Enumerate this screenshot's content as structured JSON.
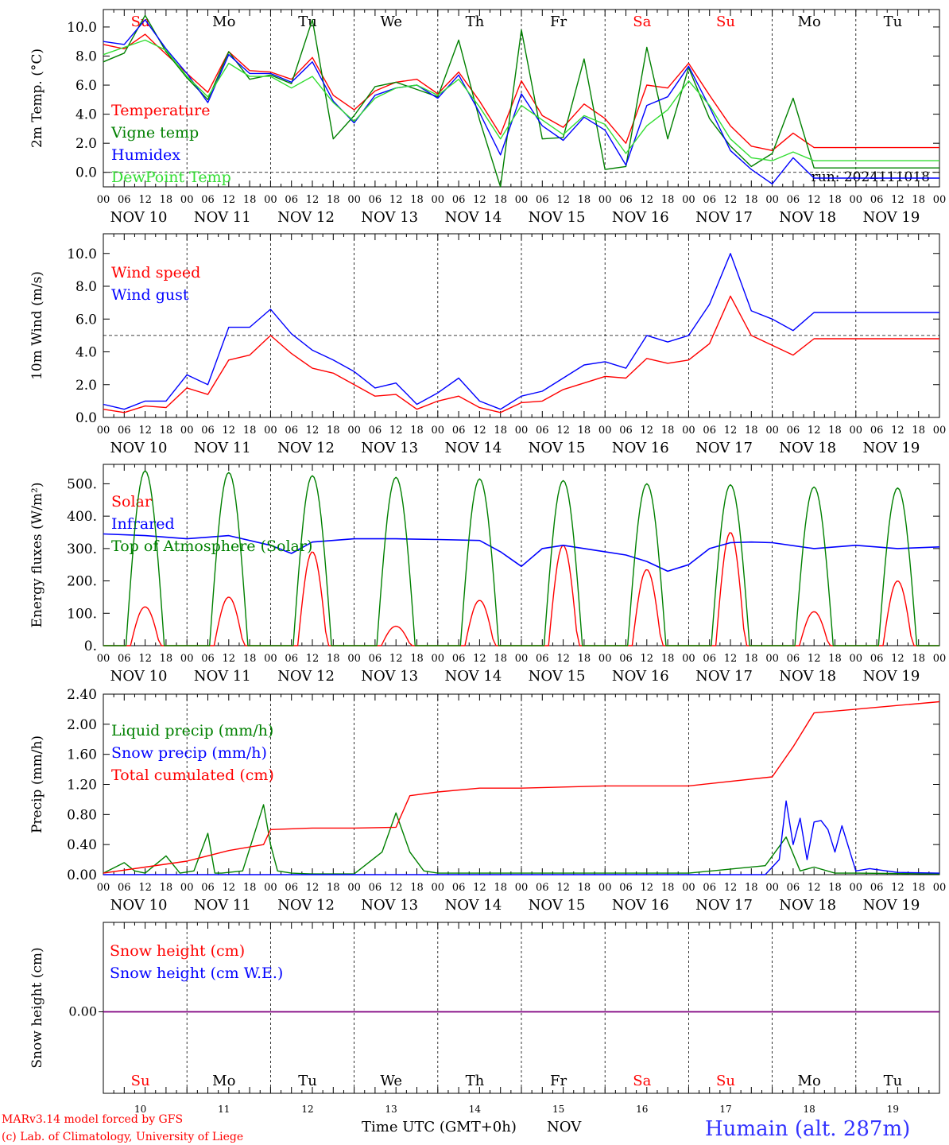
{
  "colors": {
    "red": "#ff0000",
    "green": "#008000",
    "blue": "#0000ff",
    "lightgreen": "#33dd33",
    "purple": "#800080",
    "footer_blue": "#3333ff"
  },
  "day_names": [
    "Su",
    "Mo",
    "Tu",
    "We",
    "Th",
    "Fr",
    "Sa",
    "Su",
    "Mo",
    "Tu"
  ],
  "weekend_days": [
    0,
    6,
    7
  ],
  "hour_ticks": [
    "00",
    "06",
    "12",
    "18"
  ],
  "last_hour_tick": "00",
  "date_labels": [
    "NOV 10",
    "NOV 11",
    "NOV 12",
    "NOV 13",
    "NOV 14",
    "NOV 15",
    "NOV 16",
    "NOV 17",
    "NOV 18",
    "NOV 19"
  ],
  "bottom_days": [
    "10",
    "11",
    "12",
    "13",
    "14",
    "15",
    "16",
    "17",
    "18",
    "19"
  ],
  "footer": {
    "credit1": "MARv3.14 model forced by GFS",
    "credit2": "(c) Lab. of Climatology, University of Liege",
    "xlabel": "Time UTC (GMT+0h)",
    "month": "NOV",
    "station": "Humain (alt. 287m)"
  },
  "chart_data": [
    {
      "type": "line",
      "ylabel": "2m Temp. (°C)",
      "ylim": [
        -1.0,
        11.2
      ],
      "yticks": [
        "0.0",
        "2.0",
        "4.0",
        "6.0",
        "8.0",
        "10.0"
      ],
      "ytick_values": [
        0,
        2,
        4,
        6,
        8,
        10
      ],
      "reference_line": 0,
      "annotation": "run: 2024111018",
      "x_unit": "hours since NOV 10 00 UTC",
      "series": [
        {
          "name": "Temperature",
          "color": "red",
          "x": [
            0,
            6,
            12,
            15,
            24,
            30,
            36,
            42,
            48,
            54,
            60,
            66,
            72,
            78,
            84,
            90,
            96,
            102,
            108,
            114,
            120,
            126,
            132,
            138,
            144,
            150,
            156,
            162,
            168,
            174,
            180,
            186,
            192,
            198,
            204,
            210,
            216,
            222,
            228,
            234,
            240
          ],
          "y": [
            8.8,
            8.5,
            9.5,
            8.8,
            6.8,
            5.5,
            8.3,
            7.0,
            6.9,
            6.4,
            7.9,
            5.3,
            4.3,
            5.6,
            6.2,
            6.4,
            5.4,
            6.9,
            4.9,
            2.6,
            6.3,
            3.9,
            3.1,
            4.7,
            3.7,
            2.0,
            6.0,
            5.8,
            7.5,
            5.3,
            3.2,
            1.8,
            1.5,
            2.7,
            1.7,
            1.7,
            1.7,
            1.7,
            1.7,
            1.7,
            1.7
          ]
        },
        {
          "name": "Vigne temp",
          "color": "green",
          "x": [
            0,
            6,
            12,
            18,
            24,
            30,
            36,
            42,
            48,
            54,
            60,
            66,
            72,
            78,
            84,
            90,
            96,
            102,
            108,
            114,
            120,
            126,
            132,
            138,
            144,
            150,
            156,
            162,
            168,
            174,
            180,
            186,
            192,
            198,
            204,
            210,
            216,
            222,
            228,
            234,
            240
          ],
          "y": [
            7.6,
            8.2,
            10.8,
            8.3,
            6.5,
            5.0,
            8.3,
            6.4,
            6.7,
            6.1,
            10.5,
            2.3,
            3.9,
            5.9,
            6.2,
            5.7,
            5.2,
            9.1,
            3.6,
            -1.0,
            9.8,
            2.3,
            2.4,
            7.8,
            0.2,
            0.4,
            8.6,
            2.3,
            7.2,
            3.7,
            1.8,
            0.4,
            1.3,
            5.1,
            0.3,
            0.3,
            0.3,
            0.3,
            0.3,
            0.3,
            0.3
          ]
        },
        {
          "name": "Humidex",
          "color": "blue",
          "x": [
            0,
            6,
            12,
            18,
            24,
            30,
            36,
            42,
            48,
            54,
            60,
            66,
            72,
            78,
            84,
            90,
            96,
            102,
            108,
            114,
            120,
            126,
            132,
            138,
            144,
            150,
            156,
            162,
            168,
            174,
            180,
            186,
            192,
            198,
            204,
            210,
            216,
            222,
            228,
            234,
            240
          ],
          "y": [
            9.0,
            8.8,
            10.5,
            8.5,
            6.8,
            4.8,
            8.1,
            6.8,
            6.8,
            6.2,
            7.6,
            4.9,
            3.4,
            5.3,
            5.8,
            6.0,
            5.1,
            6.7,
            4.1,
            1.2,
            5.4,
            3.2,
            2.2,
            3.8,
            2.9,
            0.5,
            4.6,
            5.2,
            7.3,
            4.5,
            1.5,
            0.2,
            -0.8,
            1.0,
            -0.4,
            -0.4,
            -0.4,
            -0.4,
            -0.4,
            -0.4,
            -0.4
          ]
        },
        {
          "name": "DewPoint Temp",
          "color": "lightgreen",
          "x": [
            0,
            6,
            12,
            18,
            24,
            30,
            36,
            42,
            48,
            54,
            60,
            66,
            72,
            78,
            84,
            90,
            96,
            102,
            108,
            114,
            120,
            126,
            132,
            138,
            144,
            150,
            156,
            162,
            168,
            174,
            180,
            186,
            192,
            198,
            204,
            210,
            216,
            222,
            228,
            234,
            240
          ],
          "y": [
            8.1,
            8.6,
            9.1,
            8.4,
            6.6,
            5.2,
            7.5,
            6.6,
            6.6,
            5.8,
            6.6,
            4.8,
            3.5,
            5.1,
            5.8,
            6.0,
            5.3,
            6.4,
            4.5,
            2.3,
            4.6,
            3.6,
            2.6,
            3.9,
            3.3,
            1.3,
            3.2,
            4.3,
            6.3,
            4.6,
            2.3,
            1.0,
            0.8,
            1.4,
            0.8,
            0.8,
            0.8,
            0.8,
            0.8,
            0.8,
            0.8
          ]
        }
      ]
    },
    {
      "type": "line",
      "ylabel": "10m Wind (m/s)",
      "ylim": [
        0,
        11.2
      ],
      "yticks": [
        "0.0",
        "2.0",
        "4.0",
        "6.0",
        "8.0",
        "10.0"
      ],
      "ytick_values": [
        0,
        2,
        4,
        6,
        8,
        10
      ],
      "reference_line": 5,
      "x_unit": "hours since NOV 10 00 UTC",
      "series": [
        {
          "name": "Wind speed",
          "color": "red",
          "x": [
            0,
            6,
            12,
            18,
            24,
            30,
            36,
            42,
            48,
            54,
            60,
            66,
            72,
            78,
            84,
            90,
            96,
            102,
            108,
            114,
            120,
            126,
            132,
            138,
            144,
            150,
            156,
            162,
            168,
            174,
            180,
            186,
            192,
            198,
            204,
            210,
            216,
            222,
            228,
            234,
            240
          ],
          "y": [
            0.5,
            0.3,
            0.7,
            0.6,
            1.8,
            1.4,
            3.5,
            3.8,
            5.0,
            3.9,
            3.0,
            2.7,
            2.0,
            1.3,
            1.4,
            0.5,
            1.0,
            1.3,
            0.6,
            0.3,
            0.9,
            1.0,
            1.7,
            2.1,
            2.5,
            2.4,
            3.6,
            3.3,
            3.5,
            4.5,
            7.4,
            5.0,
            4.4,
            3.8,
            4.8,
            4.8,
            4.8,
            4.8,
            4.8,
            4.8,
            4.8
          ]
        },
        {
          "name": "Wind gust",
          "color": "blue",
          "x": [
            0,
            6,
            12,
            18,
            24,
            30,
            36,
            42,
            48,
            54,
            60,
            66,
            72,
            78,
            84,
            90,
            96,
            102,
            108,
            114,
            120,
            126,
            132,
            138,
            144,
            150,
            156,
            162,
            168,
            174,
            180,
            186,
            192,
            198,
            204,
            210,
            216,
            222,
            228,
            234,
            240
          ],
          "y": [
            0.8,
            0.5,
            1.0,
            1.0,
            2.6,
            2.0,
            5.5,
            5.5,
            6.6,
            5.1,
            4.1,
            3.5,
            2.8,
            1.8,
            2.1,
            0.8,
            1.5,
            2.4,
            1.0,
            0.5,
            1.3,
            1.6,
            2.4,
            3.2,
            3.4,
            3.0,
            5.0,
            4.6,
            5.0,
            6.9,
            10.0,
            6.5,
            6.0,
            5.3,
            6.4,
            6.4,
            6.4,
            6.4,
            6.4,
            6.4,
            6.4
          ]
        }
      ]
    },
    {
      "type": "line",
      "ylabel": "Energy fluxes (W/m²)",
      "ylim": [
        0,
        560
      ],
      "yticks": [
        "0.",
        "100.",
        "200.",
        "300.",
        "400.",
        "500."
      ],
      "ytick_values": [
        0,
        100,
        200,
        300,
        400,
        500
      ],
      "x_unit": "hours since NOV 10 00 UTC",
      "series": [
        {
          "name": "Solar",
          "color": "red",
          "peaks_hour": [
            12,
            36,
            60,
            84,
            108,
            132,
            156,
            180,
            204,
            228
          ],
          "peaks": [
            120,
            150,
            290,
            60,
            140,
            310,
            235,
            350,
            105,
            200
          ]
        },
        {
          "name": "Infrared",
          "color": "blue",
          "x": [
            0,
            12,
            24,
            36,
            48,
            54,
            60,
            72,
            84,
            96,
            108,
            114,
            120,
            126,
            132,
            144,
            150,
            156,
            162,
            168,
            174,
            180,
            186,
            192,
            204,
            216,
            228,
            240
          ],
          "y": [
            345,
            340,
            330,
            340,
            310,
            285,
            320,
            330,
            330,
            328,
            325,
            290,
            245,
            300,
            310,
            290,
            280,
            260,
            230,
            250,
            300,
            318,
            320,
            318,
            300,
            310,
            300,
            305
          ]
        },
        {
          "name": "Top of Atmosphere (Solar)",
          "color": "green",
          "peaks_hour": [
            12,
            36,
            60,
            84,
            108,
            132,
            156,
            180,
            204,
            228
          ],
          "peaks": [
            540,
            535,
            525,
            520,
            515,
            510,
            500,
            497,
            490,
            487
          ]
        }
      ]
    },
    {
      "type": "line",
      "ylabel": "Precip (mm/h)",
      "ylim": [
        0,
        2.4
      ],
      "yticks": [
        "0.00",
        "0.40",
        "0.80",
        "1.20",
        "1.60",
        "2.00",
        "2.40"
      ],
      "ytick_values": [
        0,
        0.4,
        0.8,
        1.2,
        1.6,
        2.0,
        2.4
      ],
      "x_unit": "hours since NOV 10 00 UTC",
      "series": [
        {
          "name": "Liquid precip (mm/h)",
          "color": "green",
          "x": [
            0,
            6,
            9,
            12,
            18,
            22,
            26,
            30,
            32,
            34,
            40,
            46,
            48,
            50,
            54,
            60,
            72,
            80,
            84,
            88,
            92,
            96,
            120,
            144,
            168,
            190,
            196,
            200,
            204,
            210,
            216,
            240
          ],
          "y": [
            0.02,
            0.16,
            0.05,
            0.02,
            0.25,
            0.02,
            0.05,
            0.55,
            0.02,
            0.02,
            0.05,
            0.93,
            0.4,
            0.05,
            0.02,
            0.01,
            0.01,
            0.3,
            0.82,
            0.3,
            0.05,
            0.02,
            0.02,
            0.02,
            0.02,
            0.12,
            0.5,
            0.05,
            0.1,
            0.02,
            0.02,
            0.01
          ]
        },
        {
          "name": "Snow precip (mm/h)",
          "color": "blue",
          "x": [
            0,
            190,
            194,
            196,
            198,
            200,
            202,
            204,
            206,
            208,
            210,
            212,
            216,
            220,
            228,
            240
          ],
          "y": [
            0,
            0,
            0.2,
            0.98,
            0.4,
            0.75,
            0.2,
            0.7,
            0.72,
            0.6,
            0.3,
            0.65,
            0.05,
            0.08,
            0.03,
            0.02
          ]
        },
        {
          "name": "Total cumulated (cm)",
          "color": "red",
          "x": [
            0,
            12,
            24,
            36,
            46,
            48,
            60,
            72,
            84,
            88,
            96,
            108,
            120,
            144,
            168,
            192,
            198,
            204,
            216,
            228,
            240
          ],
          "y": [
            0.02,
            0.1,
            0.18,
            0.32,
            0.4,
            0.6,
            0.62,
            0.62,
            0.63,
            1.05,
            1.1,
            1.15,
            1.15,
            1.18,
            1.18,
            1.3,
            1.7,
            2.15,
            2.2,
            2.25,
            2.3
          ]
        }
      ]
    },
    {
      "type": "line",
      "ylabel": "Snow height (cm)",
      "yticks": [
        "0.00"
      ],
      "ytick_values": [
        0
      ],
      "x_unit": "hours since NOV 10 00 UTC",
      "series": [
        {
          "name": "Snow height (cm)",
          "color": "red",
          "x": [
            0,
            240
          ],
          "y": [
            0,
            0
          ]
        },
        {
          "name": "Snow height (cm W.E.)",
          "color": "blue",
          "x": [
            0,
            240
          ],
          "y": [
            0,
            0
          ]
        }
      ]
    }
  ]
}
